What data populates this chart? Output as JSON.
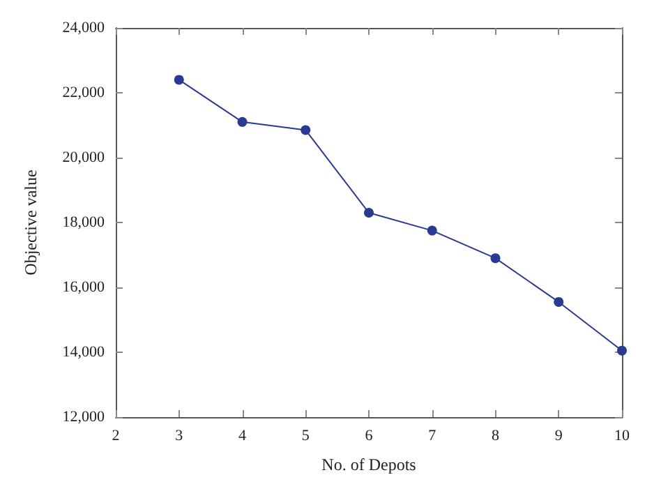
{
  "chart_data": {
    "type": "line",
    "xlabel": "No. of Depots",
    "ylabel": "Objective value",
    "x": [
      3,
      4,
      5,
      6,
      7,
      8,
      9,
      10
    ],
    "series": [
      {
        "color": "#2b3990",
        "values": [
          22400,
          21100,
          20850,
          18300,
          17750,
          16900,
          15550,
          14050
        ]
      }
    ],
    "xlim": [
      2,
      10
    ],
    "xticks": [
      2,
      3,
      4,
      5,
      6,
      7,
      8,
      9,
      10
    ],
    "ylim": [
      12000,
      24000
    ],
    "yticks": [
      {
        "value": 12000,
        "label": "12,000"
      },
      {
        "value": 14000,
        "label": "14,000"
      },
      {
        "value": 16000,
        "label": "16,000"
      },
      {
        "value": 18000,
        "label": "18,000"
      },
      {
        "value": 20000,
        "label": "20,000"
      },
      {
        "value": 22000,
        "label": "22,000"
      },
      {
        "value": 24000,
        "label": "24,000"
      }
    ],
    "grid": false,
    "marker": "circle",
    "line_style": "solid"
  }
}
